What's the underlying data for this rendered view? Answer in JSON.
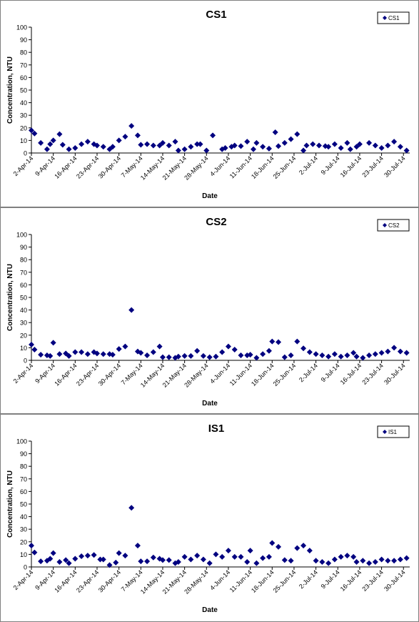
{
  "chart_data": [
    {
      "type": "scatter",
      "title": "CS1",
      "xlabel": "Date",
      "ylabel": "Concentration, NTU",
      "ylim": [
        0,
        100
      ],
      "yticks": [
        0,
        10,
        20,
        30,
        40,
        50,
        60,
        70,
        80,
        90,
        100
      ],
      "xlim": [
        "2-Apr-14",
        "1-Aug-14"
      ],
      "xtick_labels": [
        "2-Apr-14",
        "9-Apr-14",
        "16-Apr-14",
        "23-Apr-14",
        "30-Apr-14",
        "7-May-14",
        "14-May-14",
        "21-May-14",
        "28-May-14",
        "4-Jun-14",
        "11-Jun-14",
        "18-Jun-14",
        "25-Jun-14",
        "2-Jul-14",
        "9-Jul-14",
        "16-Jul-14",
        "23-Jul-14",
        "30-Jul-14"
      ],
      "legend_position": "top-right",
      "marker_color": "#000080",
      "series": [
        {
          "name": "CS1",
          "x": [
            "2-Apr-14",
            "3-Apr-14",
            "5-Apr-14",
            "7-Apr-14",
            "8-Apr-14",
            "9-Apr-14",
            "11-Apr-14",
            "12-Apr-14",
            "14-Apr-14",
            "16-Apr-14",
            "18-Apr-14",
            "20-Apr-14",
            "22-Apr-14",
            "23-Apr-14",
            "25-Apr-14",
            "27-Apr-14",
            "28-Apr-14",
            "30-Apr-14",
            "2-May-14",
            "4-May-14",
            "6-May-14",
            "7-May-14",
            "9-May-14",
            "11-May-14",
            "13-May-14",
            "14-May-14",
            "16-May-14",
            "18-May-14",
            "19-May-14",
            "21-May-14",
            "23-May-14",
            "25-May-14",
            "26-May-14",
            "28-May-14",
            "30-May-14",
            "2-Jun-14",
            "3-Jun-14",
            "5-Jun-14",
            "6-Jun-14",
            "8-Jun-14",
            "10-Jun-14",
            "12-Jun-14",
            "13-Jun-14",
            "15-Jun-14",
            "17-Jun-14",
            "19-Jun-14",
            "20-Jun-14",
            "22-Jun-14",
            "24-Jun-14",
            "26-Jun-14",
            "28-Jun-14",
            "29-Jun-14",
            "1-Jul-14",
            "3-Jul-14",
            "5-Jul-14",
            "6-Jul-14",
            "8-Jul-14",
            "10-Jul-14",
            "12-Jul-14",
            "13-Jul-14",
            "15-Jul-14",
            "16-Jul-14",
            "19-Jul-14",
            "21-Jul-14",
            "23-Jul-14",
            "25-Jul-14",
            "27-Jul-14",
            "29-Jul-14",
            "31-Jul-14"
          ],
          "y": [
            18,
            15.5,
            8,
            3,
            7,
            10,
            15,
            6.5,
            3,
            4,
            7,
            9,
            7,
            6,
            5,
            3,
            5,
            10,
            13,
            21.5,
            14,
            6.5,
            7,
            6,
            6,
            8,
            6,
            9,
            2,
            3,
            5,
            7,
            7,
            2,
            14,
            3,
            4,
            5,
            6,
            5.5,
            9,
            3,
            8,
            5,
            3.5,
            16.5,
            5.5,
            8,
            11,
            15,
            2,
            6,
            7,
            6,
            5.5,
            5,
            7,
            4,
            8,
            3,
            5,
            7,
            8,
            6,
            4,
            6,
            9,
            5,
            2
          ]
        }
      ]
    },
    {
      "type": "scatter",
      "title": "CS2",
      "xlabel": "Date",
      "ylabel": "Concentration, NTU",
      "ylim": [
        0,
        100
      ],
      "yticks": [
        0,
        10,
        20,
        30,
        40,
        50,
        60,
        70,
        80,
        90,
        100
      ],
      "xlim": [
        "2-Apr-14",
        "1-Aug-14"
      ],
      "xtick_labels": [
        "2-Apr-14",
        "9-Apr-14",
        "16-Apr-14",
        "23-Apr-14",
        "30-Apr-14",
        "7-May-14",
        "14-May-14",
        "21-May-14",
        "28-May-14",
        "4-Jun-14",
        "11-Jun-14",
        "18-Jun-14",
        "25-Jun-14",
        "2-Jul-14",
        "9-Jul-14",
        "16-Jul-14",
        "23-Jul-14",
        "30-Jul-14"
      ],
      "legend_position": "top-right",
      "marker_color": "#000080",
      "series": [
        {
          "name": "CS2",
          "x": [
            "2-Apr-14",
            "3-Apr-14",
            "5-Apr-14",
            "7-Apr-14",
            "8-Apr-14",
            "9-Apr-14",
            "11-Apr-14",
            "13-Apr-14",
            "14-Apr-14",
            "16-Apr-14",
            "18-Apr-14",
            "20-Apr-14",
            "22-Apr-14",
            "23-Apr-14",
            "25-Apr-14",
            "27-Apr-14",
            "28-Apr-14",
            "30-Apr-14",
            "2-May-14",
            "4-May-14",
            "6-May-14",
            "7-May-14",
            "9-May-14",
            "11-May-14",
            "13-May-14",
            "14-May-14",
            "16-May-14",
            "18-May-14",
            "19-May-14",
            "21-May-14",
            "23-May-14",
            "25-May-14",
            "27-May-14",
            "29-May-14",
            "31-May-14",
            "2-Jun-14",
            "4-Jun-14",
            "6-Jun-14",
            "8-Jun-14",
            "10-Jun-14",
            "11-Jun-14",
            "13-Jun-14",
            "15-Jun-14",
            "17-Jun-14",
            "18-Jun-14",
            "20-Jun-14",
            "22-Jun-14",
            "24-Jun-14",
            "26-Jun-14",
            "28-Jun-14",
            "30-Jun-14",
            "2-Jul-14",
            "4-Jul-14",
            "6-Jul-14",
            "8-Jul-14",
            "10-Jul-14",
            "12-Jul-14",
            "14-Jul-14",
            "15-Jul-14",
            "17-Jul-14",
            "19-Jul-14",
            "21-Jul-14",
            "23-Jul-14",
            "25-Jul-14",
            "27-Jul-14",
            "29-Jul-14",
            "31-Jul-14"
          ],
          "y": [
            12.5,
            8.5,
            4.5,
            4,
            3.5,
            14,
            5,
            5.5,
            3.5,
            6.5,
            6.5,
            5,
            6.5,
            5.5,
            5,
            5,
            4.5,
            9,
            11,
            40,
            7,
            6,
            4,
            6.5,
            11,
            2.5,
            2.5,
            2,
            3,
            3.5,
            3.5,
            7.5,
            3.5,
            2.5,
            3,
            6.5,
            11,
            8.5,
            4,
            4,
            4.5,
            2,
            5,
            7.5,
            15,
            14.5,
            2.5,
            4,
            15,
            9.5,
            6.5,
            5,
            4,
            3,
            5,
            3,
            4,
            6,
            3,
            2,
            4,
            5,
            6,
            7,
            10,
            7,
            6
          ]
        }
      ]
    },
    {
      "type": "scatter",
      "title": "IS1",
      "xlabel": "Date",
      "ylabel": "Concentration, NTU",
      "ylim": [
        0,
        100
      ],
      "yticks": [
        0,
        10,
        20,
        30,
        40,
        50,
        60,
        70,
        80,
        90,
        100
      ],
      "xlim": [
        "2-Apr-14",
        "1-Aug-14"
      ],
      "xtick_labels": [
        "2-Apr-14",
        "9-Apr-14",
        "16-Apr-14",
        "23-Apr-14",
        "30-Apr-14",
        "7-May-14",
        "14-May-14",
        "21-May-14",
        "28-May-14",
        "4-Jun-14",
        "11-Jun-14",
        "18-Jun-14",
        "25-Jun-14",
        "2-Jul-14",
        "9-Jul-14",
        "16-Jul-14",
        "23-Jul-14",
        "30-Jul-14"
      ],
      "legend_position": "top-right",
      "marker_color": "#000080",
      "series": [
        {
          "name": "IS1",
          "x": [
            "2-Apr-14",
            "3-Apr-14",
            "5-Apr-14",
            "7-Apr-14",
            "8-Apr-14",
            "9-Apr-14",
            "11-Apr-14",
            "13-Apr-14",
            "14-Apr-14",
            "16-Apr-14",
            "18-Apr-14",
            "20-Apr-14",
            "22-Apr-14",
            "24-Apr-14",
            "25-Apr-14",
            "27-Apr-14",
            "29-Apr-14",
            "30-Apr-14",
            "2-May-14",
            "4-May-14",
            "6-May-14",
            "7-May-14",
            "9-May-14",
            "11-May-14",
            "13-May-14",
            "14-May-14",
            "16-May-14",
            "18-May-14",
            "19-May-14",
            "21-May-14",
            "23-May-14",
            "25-May-14",
            "27-May-14",
            "29-May-14",
            "31-May-14",
            "2-Jun-14",
            "4-Jun-14",
            "6-Jun-14",
            "8-Jun-14",
            "10-Jun-14",
            "11-Jun-14",
            "13-Jun-14",
            "15-Jun-14",
            "17-Jun-14",
            "18-Jun-14",
            "20-Jun-14",
            "22-Jun-14",
            "24-Jun-14",
            "26-Jun-14",
            "28-Jun-14",
            "30-Jun-14",
            "2-Jul-14",
            "4-Jul-14",
            "6-Jul-14",
            "8-Jul-14",
            "10-Jul-14",
            "12-Jul-14",
            "14-Jul-14",
            "15-Jul-14",
            "17-Jul-14",
            "19-Jul-14",
            "21-Jul-14",
            "23-Jul-14",
            "25-Jul-14",
            "27-Jul-14",
            "29-Jul-14",
            "31-Jul-14"
          ],
          "y": [
            17,
            11.5,
            4.5,
            5,
            6.5,
            11,
            4,
            5.5,
            3,
            6.5,
            8.5,
            9,
            9.5,
            6,
            6,
            1.5,
            3.5,
            11,
            9,
            47,
            17,
            4.5,
            4.5,
            7.5,
            6.5,
            5.5,
            5.5,
            3,
            4,
            8,
            6,
            9,
            6,
            3,
            10,
            8,
            13,
            8,
            8,
            4,
            13,
            3,
            7,
            8,
            19,
            16,
            5.5,
            5,
            15,
            17,
            13,
            5,
            4,
            3,
            6,
            8,
            9,
            8,
            4,
            5,
            3,
            4,
            6,
            5,
            5,
            6,
            7
          ]
        }
      ]
    }
  ]
}
